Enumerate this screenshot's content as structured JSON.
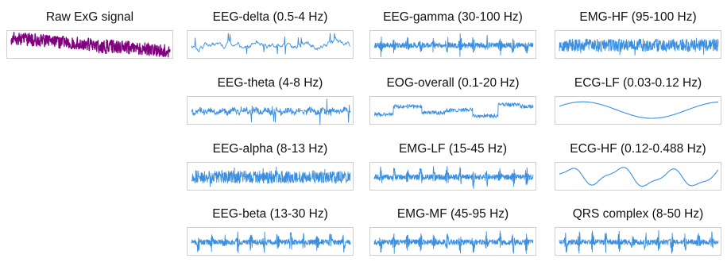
{
  "chart_data": [
    {
      "type": "line",
      "title": "Raw ExG signal",
      "style": "raw",
      "color": "#800080",
      "trend": "downward",
      "grid": false
    },
    {
      "type": "line",
      "title": "EEG-delta (0.5-4 Hz)",
      "style": "delta",
      "color": "#3b8fe0",
      "grid": false
    },
    {
      "type": "line",
      "title": "EEG-theta (4-8 Hz)",
      "style": "mid",
      "color": "#3b8fe0",
      "grid": false
    },
    {
      "type": "line",
      "title": "EEG-alpha (8-13 Hz)",
      "style": "dense",
      "color": "#3b8fe0",
      "grid": false
    },
    {
      "type": "line",
      "title": "EEG-beta (13-30 Hz)",
      "style": "bursts",
      "color": "#3b8fe0",
      "grid": false
    },
    {
      "type": "line",
      "title": "EEG-gamma (30-100 Hz)",
      "style": "bursts",
      "color": "#3b8fe0",
      "grid": false
    },
    {
      "type": "line",
      "title": "EOG-overall (0.1-20 Hz)",
      "style": "eog",
      "color": "#3b8fe0",
      "grid": false
    },
    {
      "type": "line",
      "title": "EMG-LF (15-45 Hz)",
      "style": "bursts",
      "color": "#3b8fe0",
      "grid": false
    },
    {
      "type": "line",
      "title": "EMG-MF (45-95 Hz)",
      "style": "bursts",
      "color": "#3b8fe0",
      "grid": false
    },
    {
      "type": "line",
      "title": "EMG-HF (95-100 Hz)",
      "style": "dense",
      "color": "#3b8fe0",
      "grid": false
    },
    {
      "type": "line",
      "title": "ECG-LF (0.03-0.12 Hz)",
      "style": "ecglf",
      "color": "#3b8fe0",
      "grid": false
    },
    {
      "type": "line",
      "title": "ECG-HF (0.12-0.488 Hz)",
      "style": "ecghf",
      "color": "#3b8fe0",
      "grid": false
    },
    {
      "type": "line",
      "title": "QRS complex (8-50 Hz)",
      "style": "bursts",
      "color": "#3b8fe0",
      "grid": false
    }
  ]
}
